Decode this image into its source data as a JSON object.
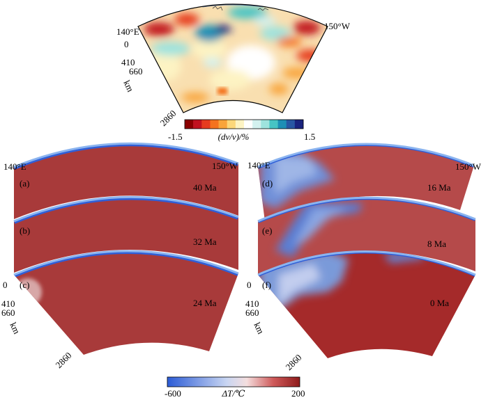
{
  "top_panel": {
    "lon_left": "140°E",
    "lon_right": "150°W",
    "depth_labels": [
      "0",
      "410",
      "660",
      "2860"
    ],
    "depth_unit": "km",
    "colorbar": {
      "min_label": "-1.5",
      "max_label": "1.5",
      "title": "(dv/v)/%",
      "colors": [
        "#8b0000",
        "#c1121f",
        "#e63b1f",
        "#f4731f",
        "#f9a43b",
        "#fcd77a",
        "#fdf3c3",
        "#ffffff",
        "#d3f1ef",
        "#9ee3de",
        "#47c4c4",
        "#1d8fb5",
        "#2857a3",
        "#1a237e"
      ]
    }
  },
  "model_panels": {
    "lon_left": "140°E",
    "lon_right": "150°W",
    "depth_labels": [
      "0",
      "410",
      "660",
      "2860"
    ],
    "depth_unit": "km",
    "panels": [
      {
        "letter": "(a)",
        "age": "40 Ma"
      },
      {
        "letter": "(b)",
        "age": "32 Ma"
      },
      {
        "letter": "(c)",
        "age": "24 Ma"
      },
      {
        "letter": "(d)",
        "age": "16 Ma"
      },
      {
        "letter": "(e)",
        "age": "8 Ma"
      },
      {
        "letter": "(f)",
        "age": "0 Ma"
      }
    ]
  },
  "temp_colorbar": {
    "min_label": "-600",
    "max_label": "200",
    "title": "ΔT/℃",
    "colors": {
      "cold": "#2c5cd6",
      "mid": "#f2f2f2",
      "warm": "#8e1b1b"
    }
  }
}
